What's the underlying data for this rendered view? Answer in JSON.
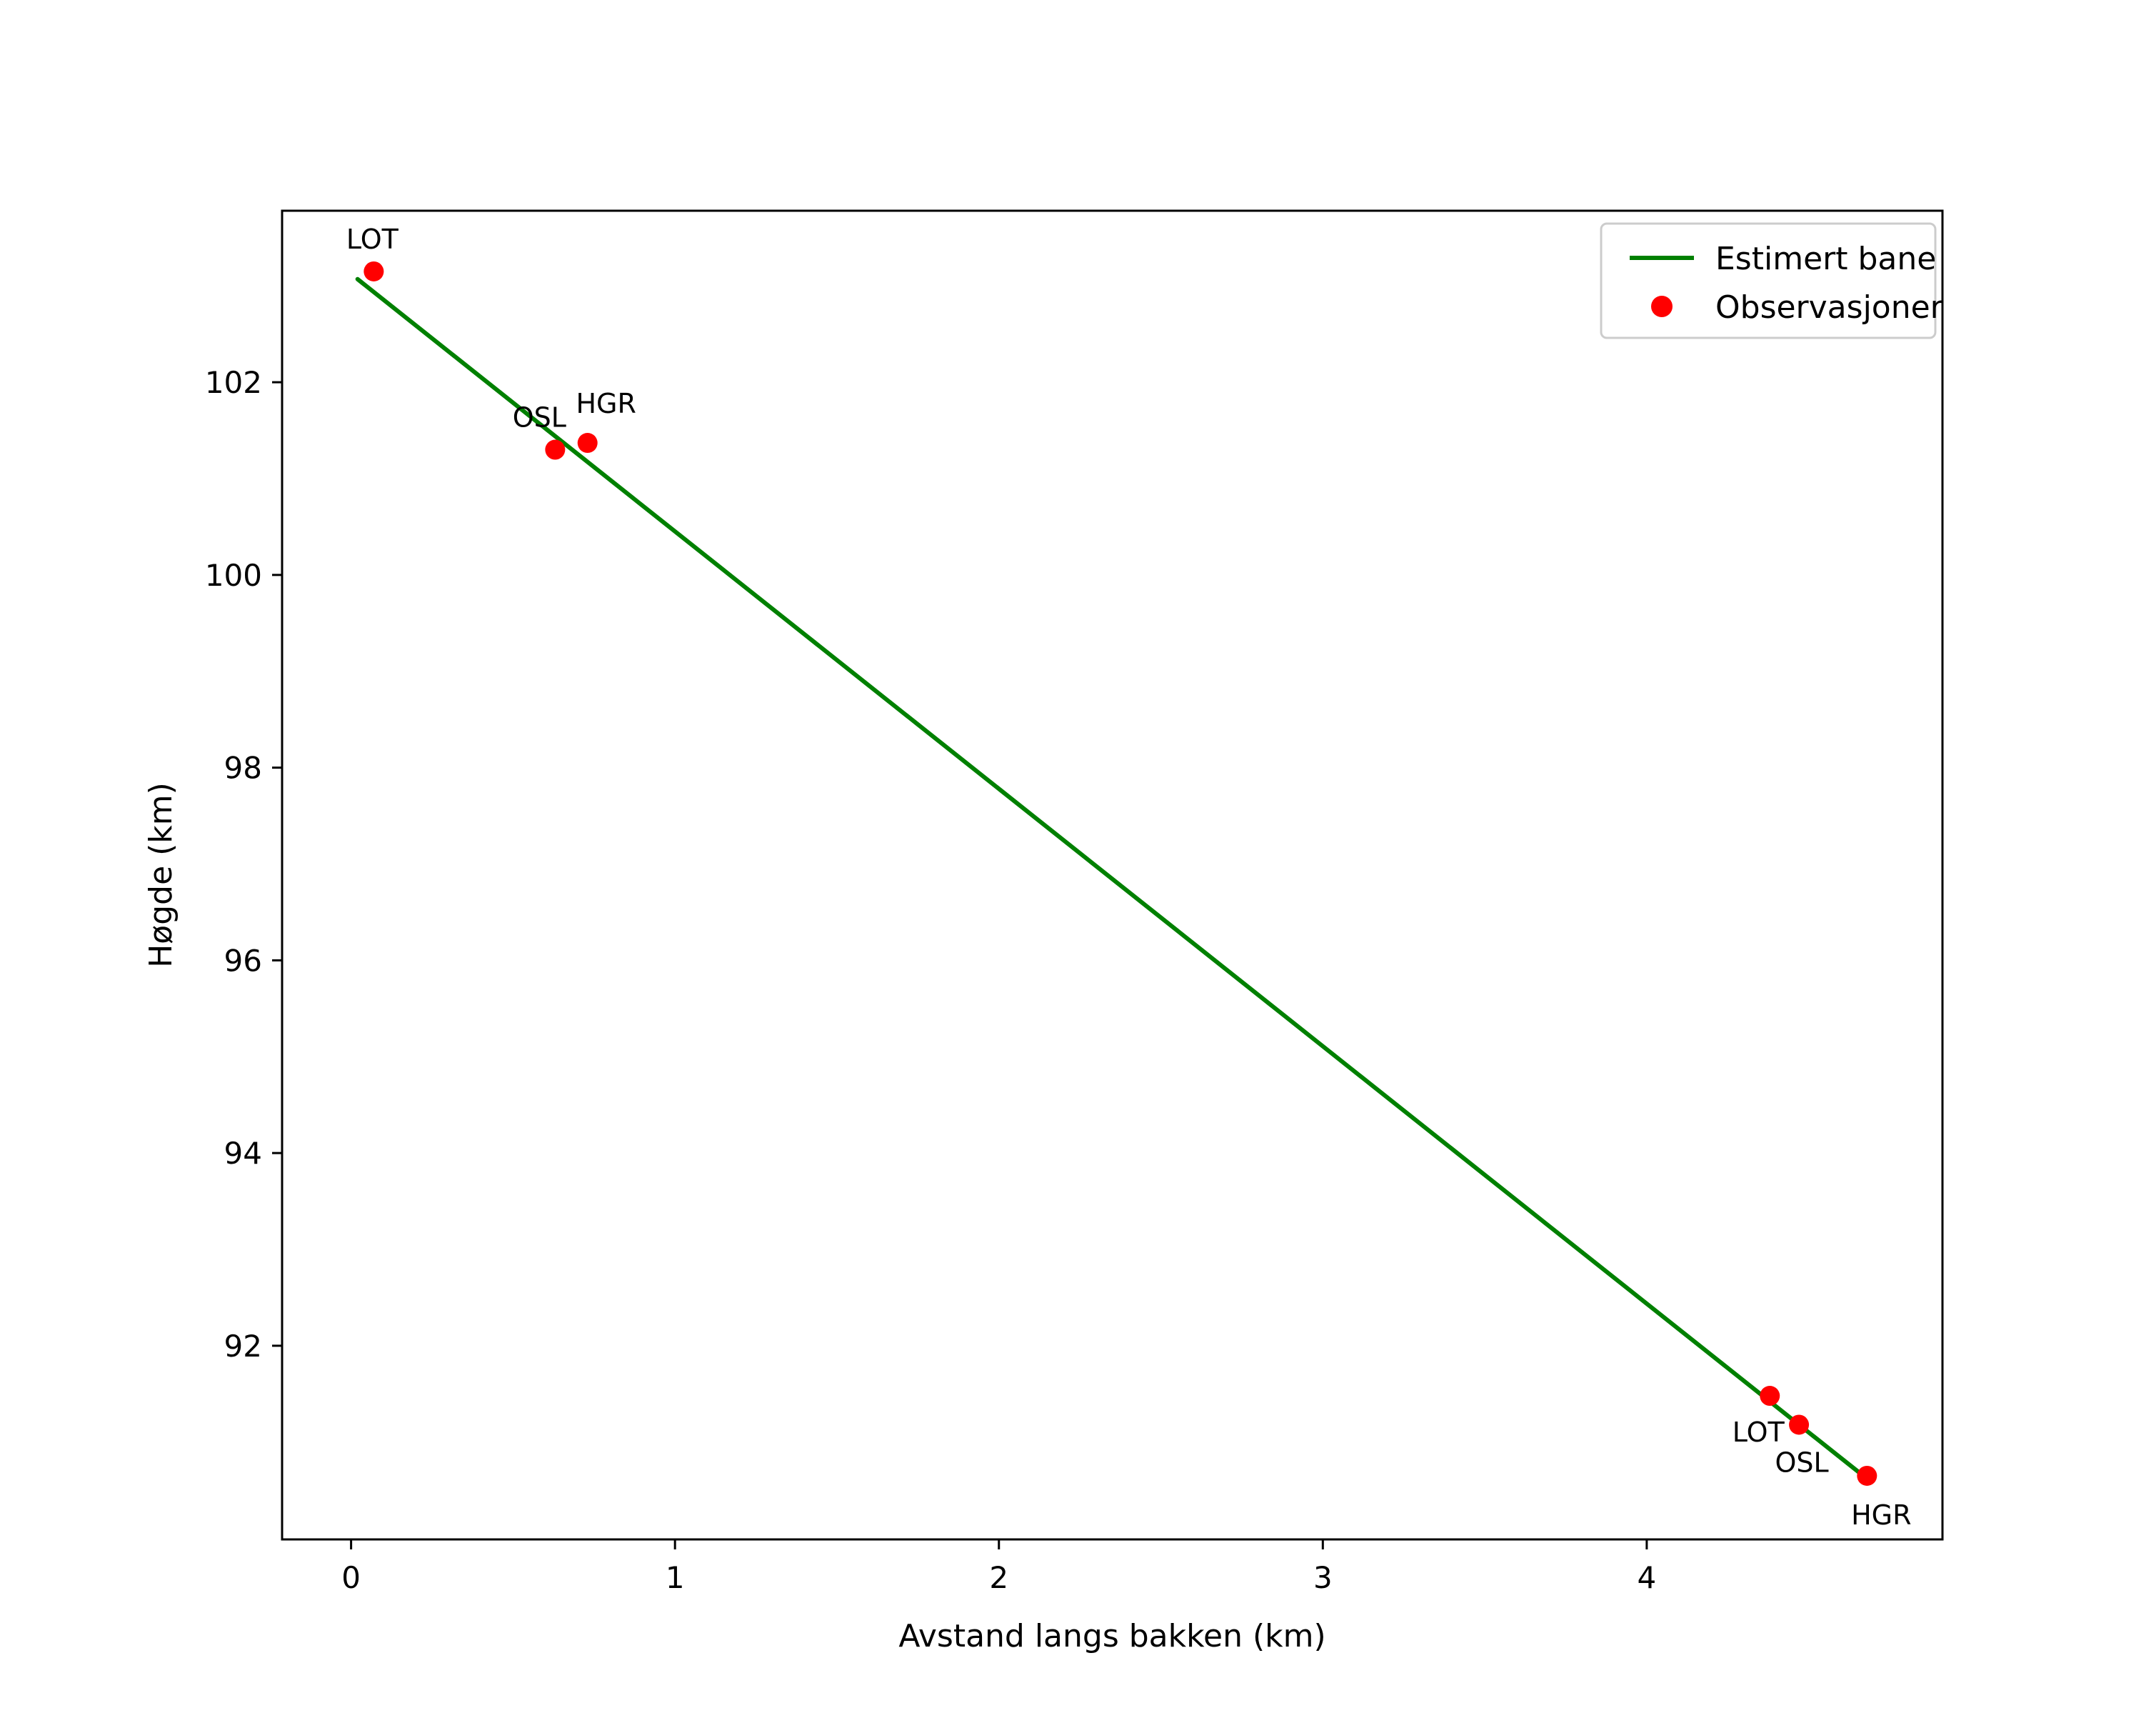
{
  "chart_data": {
    "type": "line+scatter",
    "title": "",
    "xlabel": "Avstand langs bakken (km)",
    "ylabel": "Høgde (km)",
    "xlim": [
      -0.213,
      4.913
    ],
    "ylim": [
      89.99,
      103.78
    ],
    "xtick_values": [
      0,
      1,
      2,
      3,
      4
    ],
    "xtick_labels": [
      "0",
      "1",
      "2",
      "3",
      "4"
    ],
    "ytick_values": [
      92,
      94,
      96,
      98,
      100,
      102
    ],
    "ytick_labels": [
      "92",
      "94",
      "96",
      "98",
      "100",
      "102"
    ],
    "grid": false,
    "legend": {
      "position": "upper right",
      "entries": [
        {
          "label": "Estimert bane",
          "marker": "line",
          "color": "#008000"
        },
        {
          "label": "Observasjoner",
          "marker": "dot",
          "color": "#ff0000"
        }
      ]
    },
    "series": [
      {
        "name": "Estimert bane",
        "type": "line",
        "color": "#008000",
        "x": [
          0.02,
          4.68
        ],
        "y": [
          103.07,
          90.62
        ]
      },
      {
        "name": "Observasjoner",
        "type": "scatter",
        "color": "#ff0000",
        "points": [
          {
            "label": "LOT",
            "x": 0.07,
            "y": 103.15,
            "dx": -2,
            "dy": -32,
            "anchor": "middle"
          },
          {
            "label": "OSL",
            "x": 0.63,
            "y": 101.3,
            "dx": -22,
            "dy": -32,
            "anchor": "middle"
          },
          {
            "label": "HGR",
            "x": 0.73,
            "y": 101.37,
            "dx": 26,
            "dy": -42,
            "anchor": "middle"
          },
          {
            "label": "LOT",
            "x": 4.38,
            "y": 91.48,
            "dx": -16,
            "dy": 64,
            "anchor": "middle"
          },
          {
            "label": "OSL",
            "x": 4.47,
            "y": 91.18,
            "dx": 4,
            "dy": 66,
            "anchor": "middle"
          },
          {
            "label": "HGR",
            "x": 4.68,
            "y": 90.65,
            "dx": 20,
            "dy": 68,
            "anchor": "middle"
          }
        ]
      }
    ]
  }
}
